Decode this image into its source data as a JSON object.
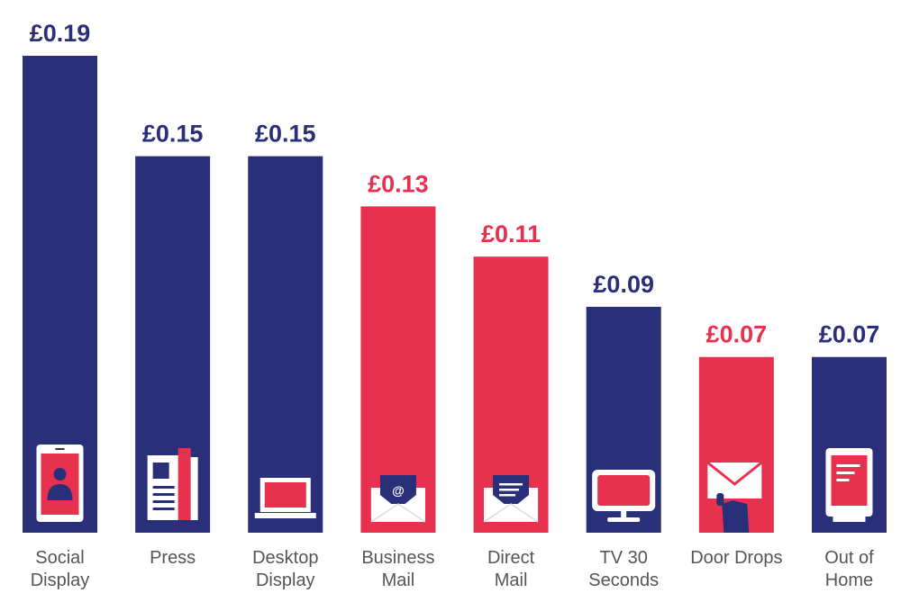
{
  "chart_data": {
    "type": "bar",
    "title": "",
    "xlabel": "",
    "ylabel": "",
    "ylim": [
      0,
      0.19
    ],
    "grid": false,
    "currency_prefix": "£",
    "categories": [
      [
        "Social",
        "Display"
      ],
      [
        "Press"
      ],
      [
        "Desktop",
        "Display"
      ],
      [
        "Business",
        "Mail"
      ],
      [
        "Direct",
        "Mail"
      ],
      [
        "TV 30",
        "Seconds"
      ],
      [
        "Door Drops"
      ],
      [
        "Out of",
        "Home"
      ]
    ],
    "values": [
      0.19,
      0.15,
      0.15,
      0.13,
      0.11,
      0.09,
      0.07,
      0.07
    ],
    "value_labels": [
      "£0.19",
      "£0.15",
      "£0.15",
      "£0.13",
      "£0.11",
      "£0.09",
      "£0.07",
      "£0.07"
    ],
    "bar_colors": [
      "#2a2f7a",
      "#2a2f7a",
      "#2a2f7a",
      "#e8314f",
      "#e8314f",
      "#2a2f7a",
      "#e8314f",
      "#2a2f7a"
    ],
    "icons": [
      "smartphone-profile-icon",
      "newspaper-icon",
      "laptop-icon",
      "email-at-icon",
      "open-letter-icon",
      "television-icon",
      "hand-holding-envelope-icon",
      "billboard-icon"
    ]
  },
  "colors": {
    "navy": "#2a2f7a",
    "red": "#e8314f",
    "label_gray": "#555555"
  }
}
